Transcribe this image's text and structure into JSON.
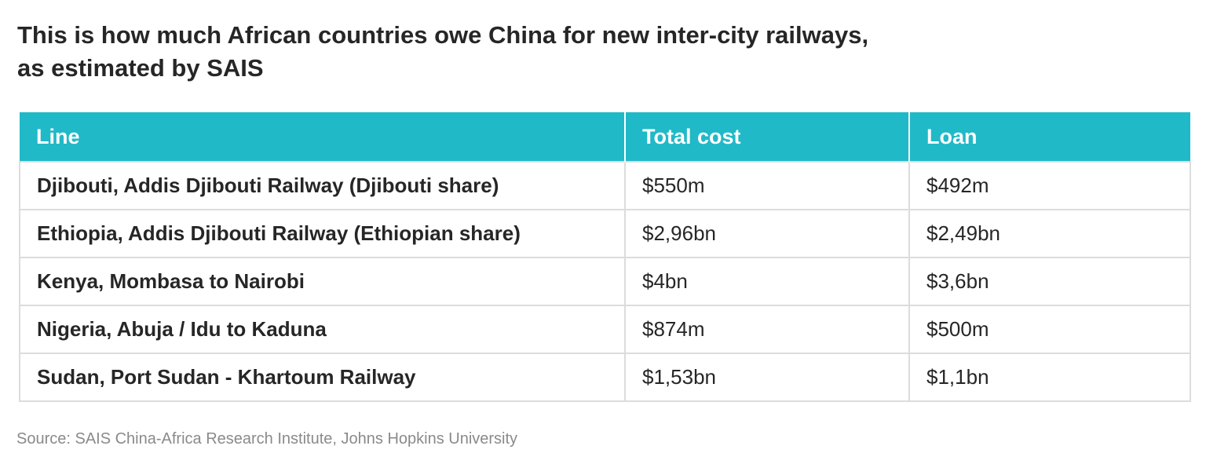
{
  "chart_data": {
    "type": "table",
    "title": "This is how much African countries owe China for new inter-city railways, as estimated by SAIS",
    "columns": [
      "Line",
      "Total cost",
      "Loan"
    ],
    "rows": [
      [
        "Djibouti, Addis Djibouti Railway (Djibouti share)",
        "$550m",
        "$492m"
      ],
      [
        "Ethiopia, Addis Djibouti Railway (Ethiopian share)",
        "$2,96bn",
        "$2,49bn"
      ],
      [
        "Kenya, Mombasa to Nairobi",
        "$4bn",
        "$3,6bn"
      ],
      [
        "Nigeria, Abuja / Idu to Kaduna",
        "$874m",
        "$500m"
      ],
      [
        "Sudan, Port Sudan - Khartoum Railway",
        "$1,53bn",
        "$1,1bn"
      ]
    ],
    "source": "Source: SAIS China-Africa Research Institute, Johns Hopkins University"
  },
  "colors": {
    "header_background": "#20b9c7",
    "header_text": "#ffffff",
    "cell_border": "#dcdcdc",
    "body_text": "#262626",
    "source_text": "#8a8a8a"
  }
}
